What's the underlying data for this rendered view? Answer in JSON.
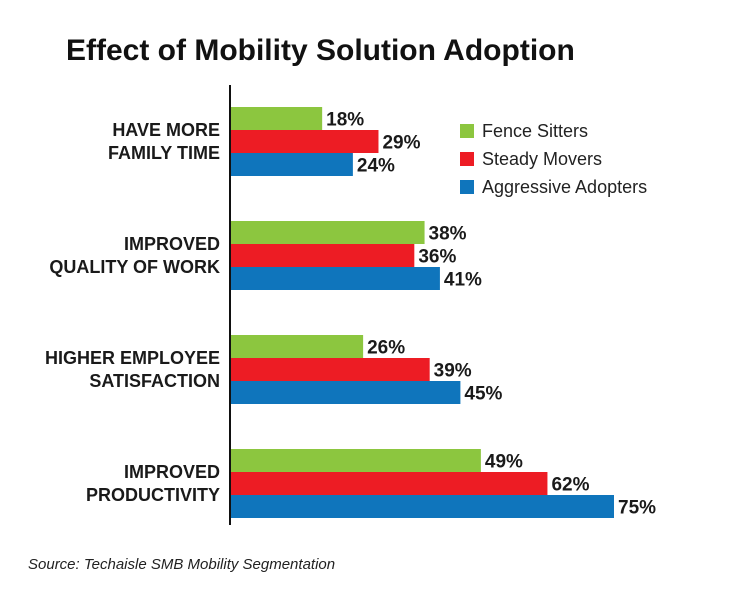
{
  "chart_data": {
    "type": "bar",
    "orientation": "horizontal",
    "title": "Effect of Mobility Solution Adoption",
    "categories": [
      [
        "HAVE MORE",
        "FAMILY TIME"
      ],
      [
        "IMPROVED",
        "QUALITY OF WORK"
      ],
      [
        "HIGHER EMPLOYEE",
        "SATISFACTION"
      ],
      [
        "IMPROVED",
        "PRODUCTIVITY"
      ]
    ],
    "series": [
      {
        "name": "Fence Sitters",
        "color": "#8cc63f",
        "values": [
          18,
          38,
          26,
          49
        ]
      },
      {
        "name": "Steady Movers",
        "color": "#ed1c24",
        "values": [
          29,
          36,
          39,
          62
        ]
      },
      {
        "name": "Aggressive Adopters",
        "color": "#0f75bc",
        "values": [
          24,
          41,
          45,
          75
        ]
      }
    ],
    "value_suffix": "%",
    "xlim": [
      0,
      100
    ],
    "grid": false,
    "legend_position": "top-right",
    "source": "Source: Techaisle SMB Mobility Segmentation"
  }
}
